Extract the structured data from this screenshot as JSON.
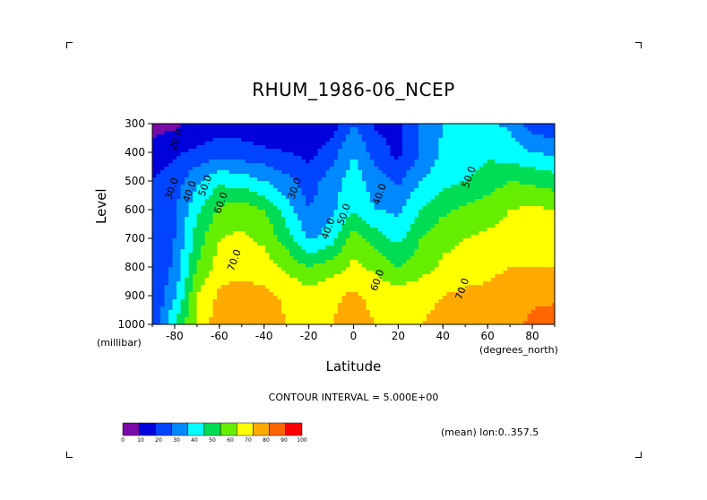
{
  "chart_data": {
    "type": "heatmap",
    "title": "RHUM_1986-06_NCEP",
    "xlabel": "Latitude",
    "ylabel": "Level",
    "x_unit_label": "(degrees_north)",
    "y_unit_label": "(millibar)",
    "xlim": [
      -90,
      90
    ],
    "ylim": [
      1000,
      300
    ],
    "x_ticks": [
      -80,
      -60,
      -40,
      -20,
      0,
      20,
      40,
      60,
      80
    ],
    "x_tick_labels": [
      "-80",
      "-60",
      "-40",
      "-20",
      "0",
      "20",
      "40",
      "60",
      "80"
    ],
    "y_ticks": [
      300,
      400,
      500,
      600,
      700,
      800,
      900,
      1000
    ],
    "y_tick_labels": [
      "300",
      "400",
      "500",
      "600",
      "700",
      "800",
      "900",
      "1000"
    ],
    "contour_labels": [
      {
        "text": "20.0",
        "x": -78,
        "y": 360
      },
      {
        "text": "30.0",
        "x": -80,
        "y": 530
      },
      {
        "text": "40.0",
        "x": -72,
        "y": 540
      },
      {
        "text": "50.0",
        "x": -65,
        "y": 520
      },
      {
        "text": "60.0",
        "x": -58,
        "y": 580
      },
      {
        "text": "70.0",
        "x": -52,
        "y": 780
      },
      {
        "text": "30.0",
        "x": -25,
        "y": 530
      },
      {
        "text": "40.0",
        "x": -10,
        "y": 670
      },
      {
        "text": "50.0",
        "x": -3,
        "y": 620
      },
      {
        "text": "40.0",
        "x": 13,
        "y": 550
      },
      {
        "text": "60.0",
        "x": 12,
        "y": 850
      },
      {
        "text": "50.0",
        "x": 53,
        "y": 490
      },
      {
        "text": "70.0",
        "x": 50,
        "y": 880
      }
    ],
    "grid": {
      "lat": [
        -90,
        -80,
        -70,
        -60,
        -50,
        -40,
        -30,
        -20,
        -10,
        0,
        10,
        20,
        30,
        40,
        50,
        60,
        70,
        80,
        90
      ],
      "level": [
        300,
        400,
        500,
        600,
        700,
        800,
        900,
        1000
      ],
      "values": [
        [
          5,
          8,
          12,
          15,
          15,
          12,
          10,
          10,
          15,
          30,
          18,
          18,
          32,
          40,
          40,
          42,
          38,
          25,
          20
        ],
        [
          15,
          18,
          22,
          25,
          24,
          22,
          20,
          17,
          25,
          40,
          25,
          17,
          30,
          42,
          45,
          48,
          45,
          40,
          38
        ],
        [
          20,
          25,
          38,
          48,
          45,
          40,
          33,
          25,
          35,
          45,
          35,
          28,
          40,
          47,
          50,
          55,
          60,
          58,
          55
        ],
        [
          20,
          28,
          48,
          62,
          65,
          60,
          45,
          30,
          38,
          48,
          40,
          38,
          50,
          58,
          62,
          65,
          70,
          72,
          70
        ],
        [
          20,
          30,
          55,
          70,
          72,
          68,
          55,
          38,
          45,
          65,
          55,
          47,
          60,
          67,
          70,
          72,
          75,
          75,
          75
        ],
        [
          20,
          32,
          60,
          75,
          76,
          74,
          68,
          60,
          65,
          72,
          68,
          60,
          65,
          72,
          75,
          77,
          80,
          80,
          80
        ],
        [
          20,
          38,
          70,
          82,
          85,
          83,
          78,
          75,
          78,
          82,
          77,
          75,
          78,
          80,
          82,
          83,
          85,
          88,
          88
        ],
        [
          20,
          50,
          72,
          86,
          87,
          86,
          80,
          78,
          80,
          83,
          80,
          78,
          80,
          82,
          85,
          85,
          87,
          92,
          95
        ]
      ]
    },
    "contour_interval_label": "CONTOUR INTERVAL = 5.000E+00",
    "colorbar": {
      "ticks": [
        "0",
        "10",
        "20",
        "30",
        "40",
        "50",
        "60",
        "70",
        "80",
        "90",
        "100"
      ],
      "colors": [
        "#7a0aa8",
        "#0000dd",
        "#0044ff",
        "#0088ff",
        "#00ffff",
        "#00dd55",
        "#66ee00",
        "#ffff00",
        "#ffaa00",
        "#ff6600",
        "#ff0000"
      ]
    }
  },
  "annotations": {
    "mean_note": "(mean) lon:0..357.5"
  },
  "colors": {
    "frame": "#000000",
    "background": "#ffffff",
    "missing_data": "#000000"
  }
}
